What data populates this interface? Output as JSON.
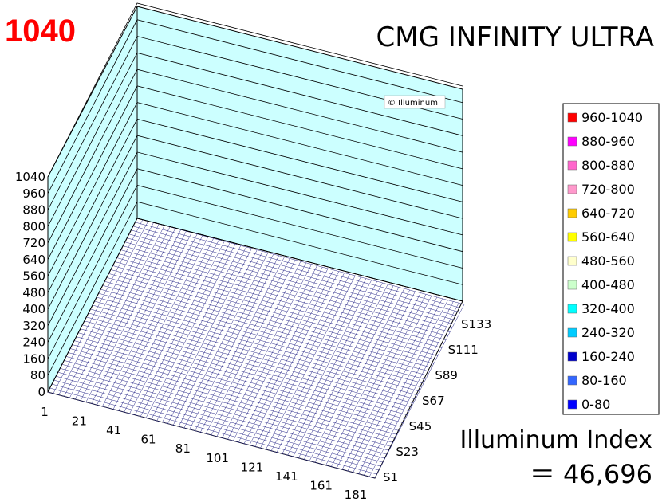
{
  "max_value_label": "1040",
  "watermark": "© Illuminum",
  "index": {
    "label": "Illuminum Index",
    "value": "＝ 46,696"
  },
  "chart_data": {
    "type": "surface3d",
    "title": "CMG INFINITY ULTRA",
    "zlim": [
      0,
      1040
    ],
    "z_ticks": [
      "0",
      "80",
      "160",
      "240",
      "320",
      "400",
      "480",
      "560",
      "640",
      "720",
      "800",
      "880",
      "960",
      "1040"
    ],
    "x_ticks": [
      "1",
      "21",
      "41",
      "61",
      "81",
      "101",
      "121",
      "141",
      "161",
      "181"
    ],
    "y_ticks": [
      "S1",
      "S23",
      "S45",
      "S67",
      "S89",
      "S111",
      "S133"
    ],
    "surface_level": 0,
    "legend": [
      {
        "range": "960-1040",
        "color": "#ff0000"
      },
      {
        "range": "880-960",
        "color": "#ff00ff"
      },
      {
        "range": "800-880",
        "color": "#ff66cc"
      },
      {
        "range": "720-800",
        "color": "#ff99cc"
      },
      {
        "range": "640-720",
        "color": "#ffcc00"
      },
      {
        "range": "560-640",
        "color": "#ffff00"
      },
      {
        "range": "480-560",
        "color": "#ffffcc"
      },
      {
        "range": "400-480",
        "color": "#ccffcc"
      },
      {
        "range": "320-400",
        "color": "#00ffff"
      },
      {
        "range": "240-320",
        "color": "#00ccff"
      },
      {
        "range": "160-240",
        "color": "#0000cc"
      },
      {
        "range": "80-160",
        "color": "#3366ff"
      },
      {
        "range": "0-80",
        "color": "#0000ff"
      }
    ]
  }
}
